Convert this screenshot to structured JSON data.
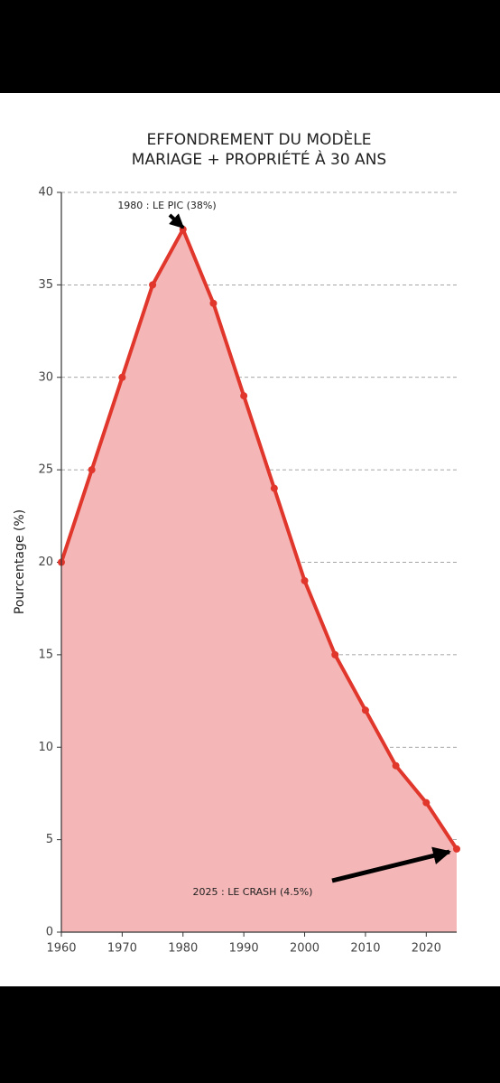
{
  "chart_data": {
    "type": "area",
    "title": [
      "EFFONDREMENT DU MODÈLE",
      "MARIAGE + PROPRIÉTÉ À 30 ANS"
    ],
    "y_label": "Pourcentage (%)",
    "x": [
      1960,
      1965,
      1970,
      1975,
      1980,
      1985,
      1990,
      1995,
      2000,
      2005,
      2010,
      2015,
      2020,
      2025
    ],
    "series": [
      {
        "name": "Mariage + propriété à 30 ans",
        "color": "#e0362b",
        "fill": "#f4b6b6",
        "values": [
          20,
          25,
          30,
          35,
          38,
          34,
          29,
          24,
          19,
          15,
          12,
          9,
          7,
          4.5
        ]
      }
    ],
    "xlim": [
      1960,
      2025
    ],
    "xticks": [
      1960,
      1970,
      1980,
      1990,
      2000,
      2010,
      2020
    ],
    "ylim": [
      0,
      40
    ],
    "yticks": [
      0,
      5,
      10,
      15,
      20,
      25,
      30,
      35,
      40
    ],
    "grid": true,
    "annotations": [
      "1980 : LE PIC (38%)",
      "2025 : LE CRASH (4.5%)"
    ]
  }
}
